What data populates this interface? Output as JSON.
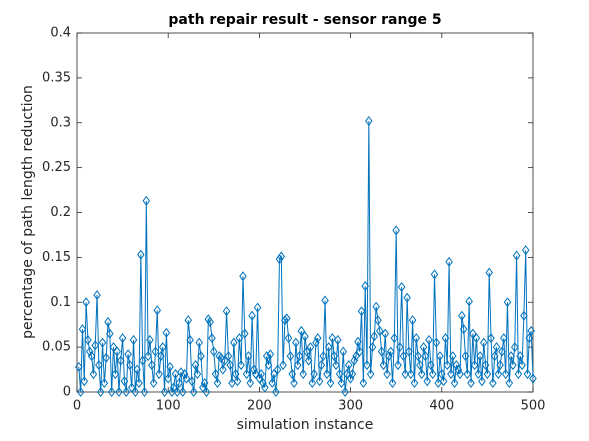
{
  "chart_data": {
    "type": "line",
    "title": "path repair result - sensor range 5",
    "xlabel": "simulation instance",
    "ylabel": "percentage of path length reduction",
    "color": "#0072BD",
    "marker": "diamond",
    "xlim": [
      0,
      500
    ],
    "xticks": [
      0,
      100,
      200,
      300,
      400,
      500
    ],
    "ylim": [
      0,
      0.4
    ],
    "yticks": [
      0,
      0.05,
      0.1,
      0.15,
      0.2,
      0.25,
      0.3,
      0.35,
      0.4
    ],
    "x": [
      2,
      4,
      6,
      8,
      10,
      12,
      14,
      16,
      18,
      20,
      22,
      24,
      26,
      28,
      30,
      32,
      34,
      36,
      38,
      40,
      42,
      44,
      46,
      48,
      50,
      52,
      54,
      56,
      58,
      60,
      62,
      64,
      66,
      68,
      70,
      72,
      74,
      76,
      78,
      80,
      82,
      84,
      86,
      88,
      90,
      92,
      94,
      96,
      98,
      100,
      102,
      104,
      106,
      108,
      110,
      112,
      114,
      116,
      118,
      120,
      122,
      124,
      126,
      128,
      130,
      132,
      134,
      136,
      138,
      140,
      142,
      144,
      146,
      148,
      150,
      152,
      154,
      156,
      158,
      160,
      162,
      164,
      166,
      168,
      170,
      172,
      174,
      176,
      178,
      180,
      182,
      184,
      186,
      188,
      190,
      192,
      194,
      196,
      198,
      200,
      202,
      204,
      206,
      208,
      210,
      212,
      214,
      216,
      218,
      220,
      222,
      224,
      226,
      228,
      230,
      232,
      234,
      236,
      238,
      240,
      242,
      244,
      246,
      248,
      250,
      252,
      254,
      256,
      258,
      260,
      262,
      264,
      266,
      268,
      270,
      272,
      274,
      276,
      278,
      280,
      282,
      284,
      286,
      288,
      290,
      292,
      294,
      296,
      298,
      300,
      302,
      304,
      306,
      308,
      310,
      312,
      314,
      316,
      318,
      320,
      322,
      324,
      326,
      328,
      330,
      332,
      334,
      336,
      338,
      340,
      342,
      344,
      346,
      348,
      350,
      352,
      354,
      356,
      358,
      360,
      362,
      364,
      366,
      368,
      370,
      372,
      374,
      376,
      378,
      380,
      382,
      384,
      386,
      388,
      390,
      392,
      394,
      396,
      398,
      400,
      402,
      404,
      406,
      408,
      410,
      412,
      414,
      416,
      418,
      420,
      422,
      424,
      426,
      428,
      430,
      432,
      434,
      436,
      438,
      440,
      442,
      444,
      446,
      448,
      450,
      452,
      454,
      456,
      458,
      460,
      462,
      464,
      466,
      468,
      470,
      472,
      474,
      476,
      478,
      480,
      482,
      484,
      486,
      488,
      490,
      492,
      494,
      496,
      498,
      500
    ],
    "values": [
      0.028,
      0,
      0.07,
      0.012,
      0.1,
      0.058,
      0.045,
      0.04,
      0.02,
      0.052,
      0.108,
      0.03,
      0,
      0.055,
      0.01,
      0.038,
      0.078,
      0.065,
      0,
      0.05,
      0.02,
      0.045,
      0,
      0.035,
      0.06,
      0.012,
      0,
      0.042,
      0.03,
      0.005,
      0.058,
      0,
      0.025,
      0.01,
      0.153,
      0.035,
      0,
      0.213,
      0.04,
      0.058,
      0.03,
      0.01,
      0.045,
      0.091,
      0.02,
      0.04,
      0.05,
      0,
      0.066,
      0.015,
      0.028,
      0,
      0.005,
      0.02,
      0,
      0.01,
      0.022,
      0,
      0.02,
      0.015,
      0.08,
      0.058,
      0.012,
      0,
      0.03,
      0.02,
      0.055,
      0.04,
      0.005,
      0.01,
      0,
      0.081,
      0.078,
      0.06,
      0.045,
      0.02,
      0.01,
      0.04,
      0.038,
      0.025,
      0.035,
      0.09,
      0.04,
      0.03,
      0.01,
      0.055,
      0.02,
      0.012,
      0.06,
      0.03,
      0.129,
      0.065,
      0.02,
      0.04,
      0.01,
      0.085,
      0.025,
      0.02,
      0.094,
      0.015,
      0.02,
      0.01,
      0.005,
      0.04,
      0.03,
      0.042,
      0.01,
      0.02,
      0,
      0.025,
      0.148,
      0.151,
      0.03,
      0.08,
      0.082,
      0.06,
      0.04,
      0.02,
      0.01,
      0.055,
      0.03,
      0.04,
      0.068,
      0.02,
      0.062,
      0.045,
      0.035,
      0.05,
      0.01,
      0.02,
      0.055,
      0.06,
      0.012,
      0.03,
      0.04,
      0.102,
      0.02,
      0.05,
      0.01,
      0.06,
      0.04,
      0.03,
      0.058,
      0.02,
      0.01,
      0.045,
      0,
      0.02,
      0.03,
      0.015,
      0.02,
      0.035,
      0.04,
      0.056,
      0.045,
      0.09,
      0.01,
      0.118,
      0.03,
      0.302,
      0.02,
      0.05,
      0.062,
      0.095,
      0.08,
      0.068,
      0.045,
      0.03,
      0.065,
      0.02,
      0.04,
      0.045,
      0.01,
      0.06,
      0.18,
      0.03,
      0.05,
      0.117,
      0.04,
      0.02,
      0.105,
      0.045,
      0.02,
      0.08,
      0.01,
      0.06,
      0.04,
      0.03,
      0.02,
      0.05,
      0.04,
      0.012,
      0.058,
      0.03,
      0.02,
      0.131,
      0.055,
      0.01,
      0.04,
      0.02,
      0.012,
      0.06,
      0.03,
      0.145,
      0.02,
      0.04,
      0.01,
      0.03,
      0.025,
      0.02,
      0.085,
      0.07,
      0.04,
      0.02,
      0.101,
      0.01,
      0.065,
      0.03,
      0.06,
      0.02,
      0.04,
      0.012,
      0.055,
      0.03,
      0.02,
      0.133,
      0.06,
      0.01,
      0.04,
      0.05,
      0.02,
      0.03,
      0.045,
      0.06,
      0.02,
      0.1,
      0.01,
      0.04,
      0.03,
      0.05,
      0.152,
      0.02,
      0.04,
      0.03,
      0.085,
      0.158,
      0.02,
      0.06,
      0.068,
      0.015
    ]
  }
}
